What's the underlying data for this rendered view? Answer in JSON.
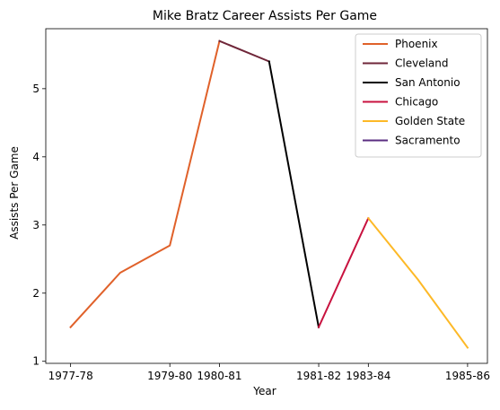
{
  "chart_data": {
    "type": "line",
    "title": "Mike Bratz Career Assists Per Game",
    "xlabel": "Year",
    "ylabel": "Assists Per Game",
    "x_tick_labels": [
      "1977-78",
      "1979-80",
      "1980-81",
      "1981-82",
      "1983-84",
      "1985-86"
    ],
    "y_tick_labels": [
      "1",
      "2",
      "3",
      "4",
      "5"
    ],
    "x_tick_positions": [
      0,
      2,
      3,
      5,
      6,
      8
    ],
    "xlim": [
      -0.5,
      8.4
    ],
    "ylim": [
      0.97,
      5.88
    ],
    "yticks": [
      1,
      2,
      3,
      4,
      5
    ],
    "grid": false,
    "legend_position": "top-right",
    "series": [
      {
        "name": "Phoenix",
        "color": "#E0612A",
        "x": [
          0,
          1,
          2,
          3
        ],
        "y": [
          1.5,
          2.3,
          2.7,
          5.7
        ]
      },
      {
        "name": "Cleveland",
        "color": "#6F2639",
        "x": [
          3,
          4
        ],
        "y": [
          5.7,
          5.4
        ]
      },
      {
        "name": "San Antonio",
        "color": "#000000",
        "x": [
          4,
          5
        ],
        "y": [
          5.4,
          1.5
        ]
      },
      {
        "name": "Chicago",
        "color": "#C8123F",
        "x": [
          5,
          6
        ],
        "y": [
          1.5,
          3.1
        ]
      },
      {
        "name": "Golden State",
        "color": "#FDB927",
        "x": [
          6,
          7,
          8
        ],
        "y": [
          3.1,
          2.2,
          1.2
        ]
      },
      {
        "name": "Sacramento",
        "color": "#5A2D81",
        "x": [],
        "y": []
      }
    ]
  }
}
